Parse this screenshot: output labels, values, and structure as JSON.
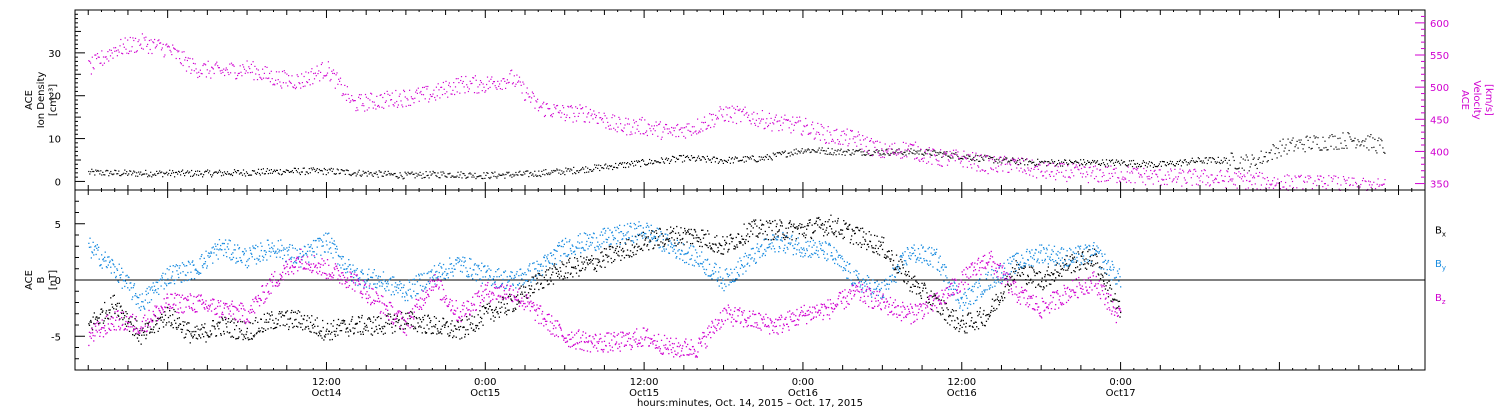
{
  "colors": {
    "black": "#000000",
    "magenta": "#d000d0",
    "blue": "#1a8ce0"
  },
  "chart_data": [
    {
      "type": "scatter",
      "panel": "top",
      "ylabel_left": [
        "ACE",
        "Ion Density",
        "[cm⁻³]"
      ],
      "ylabel_right": [
        "ACE",
        "Velocity",
        "[km/s]"
      ],
      "ylim_left": [
        -2,
        40
      ],
      "ylim_right": [
        340,
        620
      ],
      "yticks_left": [
        0,
        10,
        20,
        30
      ],
      "yticks_right": [
        350,
        400,
        450,
        500,
        550,
        600
      ],
      "x_hours_range": [
        -7,
        95
      ],
      "series": [
        {
          "axis": "left",
          "color": "#000000",
          "x_hours": [
            -6,
            -3,
            0,
            3,
            6,
            9,
            12,
            15,
            18,
            21,
            24,
            27,
            30,
            33,
            36,
            39,
            42,
            45,
            48,
            51,
            54,
            57,
            60,
            63,
            66,
            69,
            72,
            75,
            78,
            80,
            82,
            84,
            86,
            88,
            90,
            92
          ],
          "values": [
            2.2,
            2,
            2,
            2,
            2.2,
            2.5,
            2.5,
            2,
            1.5,
            1.8,
            1.5,
            1.8,
            2.5,
            3.5,
            4.5,
            5.5,
            5,
            5.5,
            7.5,
            7,
            7,
            7,
            6,
            5,
            4.5,
            4.5,
            4.5,
            4,
            5,
            5,
            4.5,
            8,
            9,
            9.5,
            10,
            8
          ]
        },
        {
          "axis": "right",
          "color": "#d000d0",
          "x_hours": [
            -6,
            -4,
            -2,
            0,
            2,
            4,
            6,
            8,
            10,
            12,
            14,
            16,
            18,
            20,
            22,
            24,
            26,
            28,
            30,
            32,
            34,
            36,
            38,
            40,
            42,
            44,
            46,
            48,
            50,
            52,
            54,
            56,
            58,
            60,
            62,
            64,
            66,
            68,
            70,
            72,
            74,
            76,
            78,
            80,
            82,
            84,
            86,
            88,
            90,
            92
          ],
          "values": [
            530,
            560,
            570,
            560,
            530,
            525,
            530,
            515,
            510,
            530,
            475,
            480,
            485,
            490,
            505,
            505,
            515,
            470,
            460,
            460,
            440,
            440,
            430,
            440,
            460,
            455,
            445,
            440,
            425,
            420,
            400,
            405,
            390,
            390,
            380,
            380,
            370,
            368,
            365,
            365,
            362,
            360,
            360,
            358,
            355,
            352,
            350,
            350,
            345,
            345
          ]
        }
      ]
    },
    {
      "type": "scatter",
      "panel": "bottom",
      "ylabel_left": [
        "ACE",
        "B",
        "[nT]"
      ],
      "ylim": [
        -8,
        8
      ],
      "yticks": [
        -5,
        0,
        5
      ],
      "zero_line": true,
      "x_hours_range": [
        -7,
        95
      ],
      "xlabel": "hours:minutes, Oct. 14, 2015 – Oct. 17, 2015",
      "xticks": [
        {
          "hour": 12,
          "time": "12:00",
          "date": "Oct14"
        },
        {
          "hour": 24,
          "time": "0:00",
          "date": "Oct15"
        },
        {
          "hour": 36,
          "time": "12:00",
          "date": "Oct15"
        },
        {
          "hour": 48,
          "time": "0:00",
          "date": "Oct16"
        },
        {
          "hour": 60,
          "time": "12:00",
          "date": "Oct16"
        },
        {
          "hour": 72,
          "time": "0:00",
          "date": "Oct17"
        }
      ],
      "series": [
        {
          "name": "Bx",
          "color": "#000000",
          "x_hours": [
            -6,
            -4,
            -2,
            0,
            2,
            4,
            6,
            8,
            10,
            12,
            14,
            16,
            18,
            20,
            22,
            24,
            26,
            28,
            30,
            32,
            34,
            36,
            38,
            40,
            42,
            44,
            46,
            48,
            50,
            52,
            54,
            56,
            58,
            60,
            62,
            64,
            66,
            68,
            70,
            72
          ],
          "values": [
            -4,
            -2,
            -5,
            -3,
            -5,
            -4,
            -4.5,
            -3.5,
            -3.5,
            -4.5,
            -4,
            -4,
            -3.5,
            -4,
            -4.5,
            -3,
            -2,
            0,
            1,
            1.5,
            2.5,
            3.5,
            4,
            4,
            3,
            4.5,
            4.5,
            4.5,
            5,
            4,
            3,
            0,
            -2,
            -4,
            -3,
            1,
            0,
            1.5,
            2,
            -3
          ]
        },
        {
          "name": "By",
          "color": "#1a8ce0",
          "x_hours": [
            -6,
            -4,
            -2,
            0,
            2,
            4,
            6,
            8,
            10,
            12,
            14,
            16,
            18,
            20,
            22,
            24,
            26,
            28,
            30,
            32,
            34,
            36,
            38,
            40,
            42,
            44,
            46,
            48,
            50,
            52,
            54,
            56,
            58,
            60,
            62,
            64,
            66,
            68,
            70,
            72
          ],
          "values": [
            3,
            1,
            -2,
            0.5,
            1,
            3,
            2,
            3,
            2,
            3.5,
            0.5,
            0,
            -1,
            0.5,
            1.5,
            0.5,
            0,
            1,
            3,
            3.5,
            4,
            4.5,
            3,
            2,
            0,
            2,
            3.5,
            3,
            2.5,
            0,
            -1,
            2.5,
            2,
            -2,
            0,
            1.5,
            2.5,
            2,
            2.5,
            0
          ]
        },
        {
          "name": "Bz",
          "color": "#d000d0",
          "x_hours": [
            -6,
            -4,
            -2,
            0,
            2,
            4,
            6,
            8,
            10,
            12,
            14,
            16,
            18,
            20,
            22,
            24,
            26,
            28,
            30,
            32,
            34,
            36,
            38,
            40,
            42,
            44,
            46,
            48,
            50,
            52,
            54,
            56,
            58,
            60,
            62,
            64,
            66,
            68,
            70,
            72
          ],
          "values": [
            -5,
            -3.5,
            -4,
            -2,
            -2,
            -2.5,
            -3,
            0,
            2,
            1,
            0,
            -2,
            -4,
            0,
            -3,
            -1,
            -1,
            -3,
            -5,
            -5.5,
            -5.5,
            -5,
            -6,
            -6,
            -3,
            -3.5,
            -4,
            -3,
            -2.5,
            -1,
            -2,
            -3,
            -2,
            0,
            2,
            -1,
            -2.5,
            -1,
            0,
            -3.5
          ]
        }
      ],
      "legend": [
        "Bx",
        "By",
        "Bz"
      ]
    }
  ]
}
